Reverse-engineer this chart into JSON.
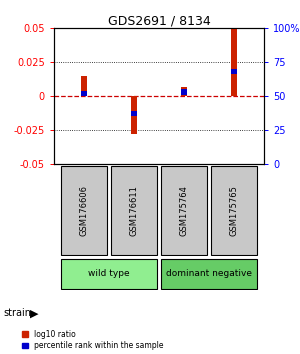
{
  "title": "GDS2691 / 8134",
  "samples": [
    "GSM176606",
    "GSM176611",
    "GSM175764",
    "GSM175765"
  ],
  "log10_ratio": [
    0.015,
    -0.028,
    0.007,
    0.05
  ],
  "percentile_rank": [
    52,
    37,
    53,
    68
  ],
  "groups": [
    {
      "name": "wild type",
      "samples": [
        0,
        1
      ],
      "color": "#90EE90"
    },
    {
      "name": "dominant negative",
      "samples": [
        2,
        3
      ],
      "color": "#66CC66"
    }
  ],
  "ylim": [
    -0.05,
    0.05
  ],
  "yticks_left": [
    -0.05,
    -0.025,
    0,
    0.025,
    0.05
  ],
  "yticks_right": [
    0,
    25,
    50,
    75,
    100
  ],
  "red_color": "#CC2200",
  "blue_color": "#0000CC",
  "background_color": "#ffffff",
  "zero_line_color": "#CC0000",
  "label_log10": "log10 ratio",
  "label_percentile": "percentile rank within the sample",
  "strain_label": "strain",
  "sample_box_color": "#C8C8C8",
  "bar_width": 0.12,
  "blue_bar_height": 0.004
}
